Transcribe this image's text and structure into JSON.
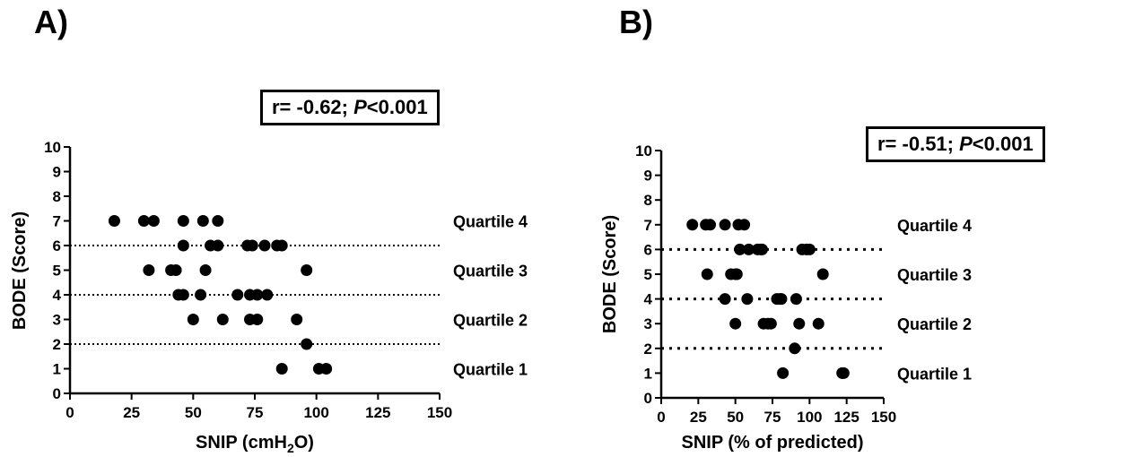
{
  "panel_a": {
    "letter": "A)",
    "stat_prefix": "r= -0.62; ",
    "stat_p": "P",
    "stat_suffix": "<0.001"
  },
  "panel_b": {
    "letter": "B)",
    "stat_prefix": "r= -0.51; ",
    "stat_p": "P",
    "stat_suffix": "<0.001"
  },
  "chart_data": [
    {
      "type": "scatter",
      "title": "",
      "ylabel": "BODE (Score)",
      "xlabel": "SNIP (cmH2O)",
      "xlim": [
        0,
        150
      ],
      "ylim": [
        0,
        10
      ],
      "x_ticks": [
        0,
        25,
        50,
        75,
        100,
        125,
        150
      ],
      "y_ticks": [
        0,
        1,
        2,
        3,
        4,
        5,
        6,
        7,
        8,
        9,
        10
      ],
      "reference_lines": [
        2,
        4,
        6
      ],
      "quartile_labels": [
        {
          "text": "Quartile 4",
          "y": 7
        },
        {
          "text": "Quartile 3",
          "y": 5
        },
        {
          "text": "Quartile 2",
          "y": 3
        },
        {
          "text": "Quartile 1",
          "y": 1
        }
      ],
      "points": [
        [
          18,
          7
        ],
        [
          30,
          7
        ],
        [
          34,
          7
        ],
        [
          46,
          7
        ],
        [
          54,
          7
        ],
        [
          60,
          7
        ],
        [
          46,
          6
        ],
        [
          57,
          6
        ],
        [
          60,
          6
        ],
        [
          72,
          6
        ],
        [
          74,
          6
        ],
        [
          79,
          6
        ],
        [
          84,
          6
        ],
        [
          86,
          6
        ],
        [
          32,
          5
        ],
        [
          41,
          5
        ],
        [
          43,
          5
        ],
        [
          55,
          5
        ],
        [
          96,
          5
        ],
        [
          44,
          4
        ],
        [
          46,
          4
        ],
        [
          53,
          4
        ],
        [
          68,
          4
        ],
        [
          73,
          4
        ],
        [
          76,
          4
        ],
        [
          80,
          4
        ],
        [
          50,
          3
        ],
        [
          62,
          3
        ],
        [
          73,
          3
        ],
        [
          76,
          3
        ],
        [
          92,
          3
        ],
        [
          96,
          2
        ],
        [
          86,
          1
        ],
        [
          101,
          1
        ],
        [
          104,
          1
        ]
      ]
    },
    {
      "type": "scatter",
      "title": "",
      "ylabel": "BODE (Score)",
      "xlabel": "SNIP (% of predicted)",
      "xlim": [
        0,
        150
      ],
      "ylim": [
        0,
        10
      ],
      "x_ticks": [
        0,
        25,
        50,
        75,
        100,
        125,
        150
      ],
      "y_ticks": [
        0,
        1,
        2,
        3,
        4,
        5,
        6,
        7,
        8,
        9,
        10
      ],
      "reference_lines": [
        2,
        4,
        6
      ],
      "quartile_labels": [
        {
          "text": "Quartile 4",
          "y": 7
        },
        {
          "text": "Quartile 3",
          "y": 5
        },
        {
          "text": "Quartile 2",
          "y": 3
        },
        {
          "text": "Quartile 1",
          "y": 1
        }
      ],
      "points": [
        [
          21,
          7
        ],
        [
          30,
          7
        ],
        [
          33,
          7
        ],
        [
          43,
          7
        ],
        [
          52,
          7
        ],
        [
          56,
          7
        ],
        [
          53,
          6
        ],
        [
          59,
          6
        ],
        [
          65,
          6
        ],
        [
          67,
          6
        ],
        [
          68,
          6
        ],
        [
          95,
          6
        ],
        [
          98,
          6
        ],
        [
          100,
          6
        ],
        [
          31,
          5
        ],
        [
          47,
          5
        ],
        [
          50,
          5
        ],
        [
          51,
          5
        ],
        [
          109,
          5
        ],
        [
          43,
          4
        ],
        [
          58,
          4
        ],
        [
          78,
          4
        ],
        [
          80,
          4
        ],
        [
          81,
          4
        ],
        [
          91,
          4
        ],
        [
          50,
          3
        ],
        [
          69,
          3
        ],
        [
          72,
          3
        ],
        [
          74,
          3
        ],
        [
          93,
          3
        ],
        [
          106,
          3
        ],
        [
          90,
          2
        ],
        [
          82,
          1
        ],
        [
          122,
          1
        ],
        [
          123,
          1
        ]
      ]
    }
  ]
}
